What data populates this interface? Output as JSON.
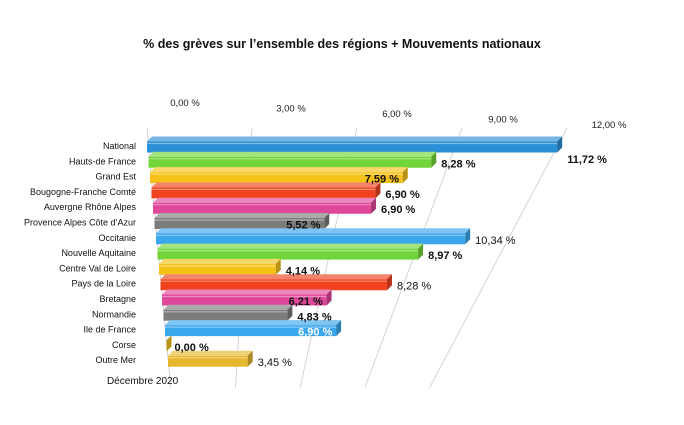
{
  "chart_data": {
    "type": "bar",
    "orientation": "horizontal",
    "style": "3d",
    "title": "% des grèves sur l’ensemble des régions + Mouvements nationaux",
    "xlim": [
      0,
      12
    ],
    "x_ticks": [
      0,
      3,
      6,
      9,
      12
    ],
    "x_tick_labels": [
      "0,00 %",
      "3,00 %",
      "6,00 %",
      "9,00 %",
      "12,00 %"
    ],
    "grid": true,
    "categories": [
      "National",
      "Hauts-de France",
      "Grand Est",
      "Bougogne-Franche Comté",
      "Auvergne Rhône Alpes",
      "Provence Alpes Côte d’Azur",
      "Occitanie",
      "Nouvelle Aquitaine",
      "Centre Val de Loire",
      "Pays de la Loire",
      "Bretagne",
      "Normandie",
      "Ile de France",
      "Corse",
      "Outre Mer"
    ],
    "values": [
      11.72,
      8.28,
      7.59,
      6.9,
      6.9,
      5.52,
      10.34,
      8.97,
      4.14,
      8.28,
      6.21,
      4.83,
      6.9,
      0.0,
      3.45
    ],
    "data_labels": [
      "11,72 %",
      "8,28 %",
      "7,59 %",
      "6,90 %",
      "6,90 %",
      "5,52 %",
      "10,34 %",
      "8,97 %",
      "4,14 %",
      "8,28 %",
      "6,21 %",
      "4,83 %",
      "6,90 %",
      "0,00 %",
      "3,45 %"
    ],
    "colors": [
      "#2a8fd6",
      "#72d63a",
      "#f5c21a",
      "#f0421e",
      "#e0479a",
      "#7c7c7c",
      "#3aa6ec",
      "#72d63a",
      "#f5c21a",
      "#f0421e",
      "#e0479a",
      "#7c7c7c",
      "#3aa6ec",
      "#f5c21a",
      "#e6b830"
    ],
    "annotation": "Décembre 2020"
  }
}
